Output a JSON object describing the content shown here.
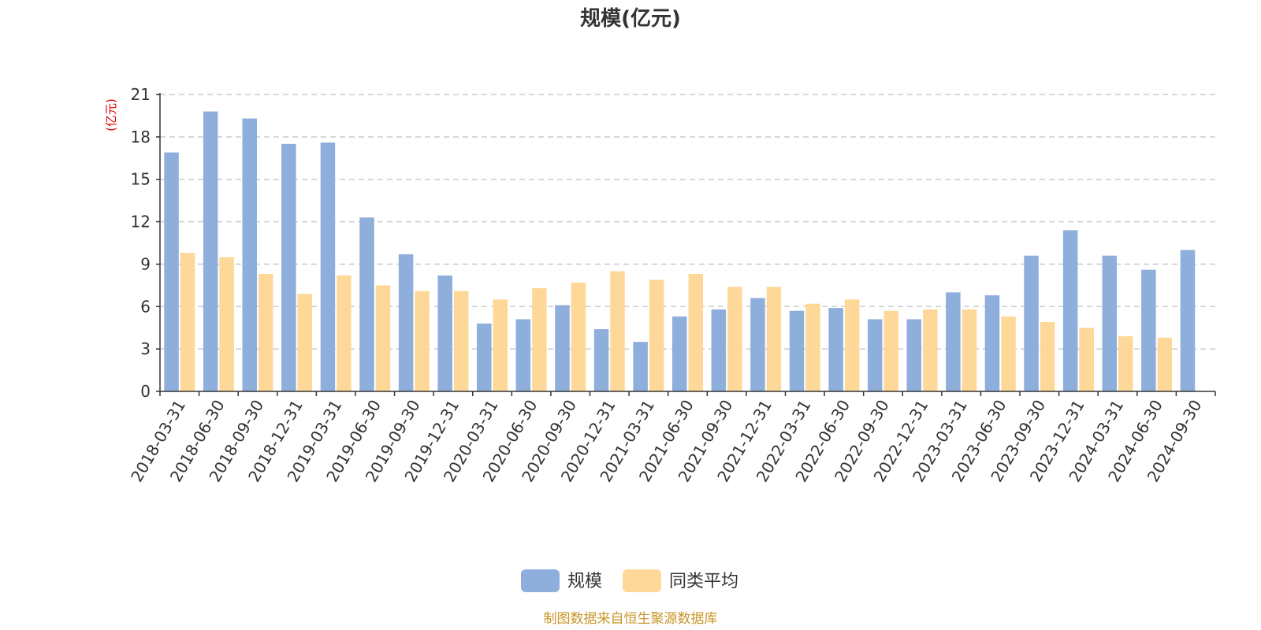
{
  "chart_data": {
    "type": "bar",
    "title": "规模(亿元)",
    "ylabel": "(亿元)",
    "ylim": [
      0,
      21
    ],
    "yticks": [
      0,
      3,
      6,
      9,
      12,
      15,
      18,
      21
    ],
    "grid": true,
    "legend_position": "bottom",
    "categories": [
      "2018-03-31",
      "2018-06-30",
      "2018-09-30",
      "2018-12-31",
      "2019-03-31",
      "2019-06-30",
      "2019-09-30",
      "2019-12-31",
      "2020-03-31",
      "2020-06-30",
      "2020-09-30",
      "2020-12-31",
      "2021-03-31",
      "2021-06-30",
      "2021-09-30",
      "2021-12-31",
      "2022-03-31",
      "2022-06-30",
      "2022-09-30",
      "2022-12-31",
      "2023-03-31",
      "2023-06-30",
      "2023-09-30",
      "2023-12-31",
      "2024-03-31",
      "2024-06-30",
      "2024-09-30"
    ],
    "series": [
      {
        "name": "规模",
        "color": "#8eaedb",
        "values": [
          16.9,
          19.8,
          19.3,
          17.5,
          17.6,
          12.3,
          9.7,
          8.2,
          4.8,
          5.1,
          6.1,
          4.4,
          3.5,
          5.3,
          5.8,
          6.6,
          5.7,
          5.9,
          5.1,
          5.1,
          7.0,
          6.8,
          9.6,
          11.4,
          9.6,
          8.6,
          10.0
        ]
      },
      {
        "name": "同类平均",
        "color": "#fed898",
        "values": [
          9.8,
          9.5,
          8.3,
          6.9,
          8.2,
          7.5,
          7.1,
          7.1,
          6.5,
          7.3,
          7.7,
          8.5,
          7.9,
          8.3,
          7.4,
          7.4,
          6.2,
          6.5,
          5.7,
          5.8,
          5.8,
          5.3,
          4.9,
          4.5,
          3.9,
          3.8,
          null
        ]
      }
    ]
  },
  "footer": {
    "source_text": "制图数据来自恒生聚源数据库",
    "source_color": "#c9962a"
  },
  "colors": {
    "unit_label": "#e00000",
    "axis": "#333333",
    "grid": "#cccccc"
  }
}
